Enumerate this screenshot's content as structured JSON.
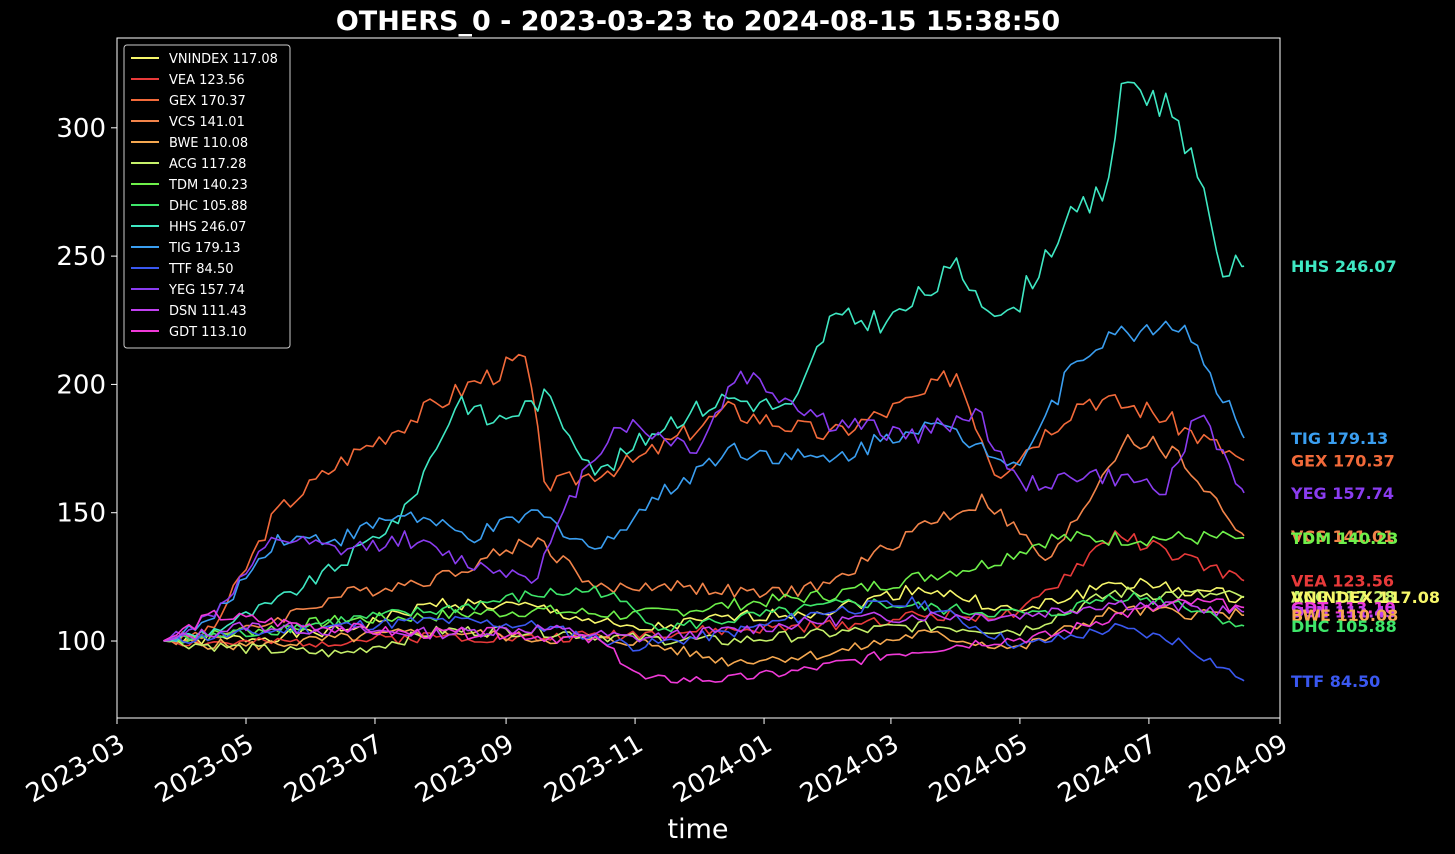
{
  "chart_data": {
    "type": "line",
    "title": "OTHERS_0 - 2023-03-23 to 2024-08-15 15:38:50",
    "xlabel": "time",
    "ylabel": "",
    "x_start": "2023-03-23",
    "x_end": "2024-08-15",
    "xlim": [
      "2023-03-01",
      "2024-09-01"
    ],
    "ylim": [
      70,
      335
    ],
    "x_ticks": [
      "2023-03",
      "2023-05",
      "2023-07",
      "2023-09",
      "2023-11",
      "2024-01",
      "2024-03",
      "2024-05",
      "2024-07",
      "2024-09"
    ],
    "y_ticks": [
      100,
      150,
      200,
      250,
      300
    ],
    "legend_position": "top-left",
    "grid": false,
    "background": "#000000",
    "series": [
      {
        "name": "VNINDEX 117.08",
        "color": "#f7f76a",
        "x": [
          "2023-03-23",
          "2023-05-01",
          "2023-06-15",
          "2023-08-01",
          "2023-09-15",
          "2023-11-01",
          "2023-12-15",
          "2024-02-01",
          "2024-03-15",
          "2024-05-01",
          "2024-06-15",
          "2024-08-15"
        ],
        "y": [
          100,
          101,
          104,
          115,
          113,
          104,
          109,
          112,
          121,
          111,
          123,
          117.08
        ]
      },
      {
        "name": "VEA 123.56",
        "color": "#e83a3a",
        "x": [
          "2023-03-23",
          "2023-05-01",
          "2023-06-15",
          "2023-08-01",
          "2023-09-15",
          "2023-11-01",
          "2023-12-15",
          "2024-02-01",
          "2024-03-15",
          "2024-05-01",
          "2024-06-15",
          "2024-08-15"
        ],
        "y": [
          100,
          99,
          100,
          102,
          101,
          103,
          104,
          106,
          110,
          110,
          142,
          123.56
        ]
      },
      {
        "name": "GEX 170.37",
        "color": "#f26a3a",
        "x": [
          "2023-03-23",
          "2023-04-15",
          "2023-05-15",
          "2023-06-15",
          "2023-07-15",
          "2023-08-15",
          "2023-09-10",
          "2023-09-20",
          "2023-11-01",
          "2023-12-15",
          "2024-02-01",
          "2024-03-15",
          "2024-04-01",
          "2024-04-20",
          "2024-06-01",
          "2024-07-01",
          "2024-08-15"
        ],
        "y": [
          100,
          104,
          150,
          170,
          185,
          200,
          210,
          160,
          170,
          190,
          180,
          195,
          205,
          165,
          195,
          190,
          170.37
        ]
      },
      {
        "name": "VCS 141.01",
        "color": "#f2844a",
        "x": [
          "2023-03-23",
          "2023-05-01",
          "2023-06-15",
          "2023-08-01",
          "2023-09-15",
          "2023-10-15",
          "2023-11-15",
          "2024-01-01",
          "2024-02-01",
          "2024-03-15",
          "2024-04-15",
          "2024-05-15",
          "2024-06-20",
          "2024-07-15",
          "2024-08-15"
        ],
        "y": [
          100,
          104,
          118,
          125,
          140,
          120,
          122,
          118,
          122,
          145,
          155,
          130,
          180,
          172,
          141.01
        ]
      },
      {
        "name": "BWE 110.08",
        "color": "#f5a850",
        "x": [
          "2023-03-23",
          "2023-05-01",
          "2023-06-15",
          "2023-08-01",
          "2023-09-15",
          "2023-11-01",
          "2023-12-15",
          "2024-02-01",
          "2024-03-15",
          "2024-05-01",
          "2024-06-15",
          "2024-08-15"
        ],
        "y": [
          100,
          98,
          101,
          104,
          101,
          100,
          92,
          95,
          103,
          97,
          112,
          110.08
        ]
      },
      {
        "name": "ACG 117.28",
        "color": "#c6f06a",
        "x": [
          "2023-03-23",
          "2023-05-01",
          "2023-06-15",
          "2023-08-01",
          "2023-09-15",
          "2023-11-01",
          "2023-12-15",
          "2024-02-01",
          "2024-03-15",
          "2024-05-01",
          "2024-06-15",
          "2024-08-15"
        ],
        "y": [
          100,
          97,
          95,
          104,
          104,
          101,
          100,
          103,
          106,
          104,
          119,
          117.28
        ]
      },
      {
        "name": "TDM 140.23",
        "color": "#6ef04a",
        "x": [
          "2023-03-23",
          "2023-05-01",
          "2023-06-15",
          "2023-08-01",
          "2023-09-15",
          "2023-11-01",
          "2023-12-15",
          "2024-02-01",
          "2024-03-15",
          "2024-04-15",
          "2024-05-15",
          "2024-06-15",
          "2024-08-15"
        ],
        "y": [
          100,
          104,
          108,
          110,
          112,
          110,
          114,
          118,
          125,
          130,
          140,
          140,
          140.23
        ]
      },
      {
        "name": "DHC 105.88",
        "color": "#3ee66a",
        "x": [
          "2023-03-23",
          "2023-05-01",
          "2023-06-15",
          "2023-08-01",
          "2023-09-15",
          "2023-10-15",
          "2023-11-15",
          "2024-01-01",
          "2024-02-15",
          "2024-04-01",
          "2024-05-15",
          "2024-06-15",
          "2024-07-15",
          "2024-08-15"
        ],
        "y": [
          100,
          103,
          108,
          112,
          118,
          120,
          105,
          110,
          115,
          112,
          110,
          118,
          115,
          105.88
        ]
      },
      {
        "name": "HHS 246.07",
        "color": "#3fe8c3",
        "x": [
          "2023-03-23",
          "2023-04-15",
          "2023-05-15",
          "2023-06-15",
          "2023-07-15",
          "2023-08-10",
          "2023-08-25",
          "2023-09-20",
          "2023-10-15",
          "2023-11-15",
          "2023-12-15",
          "2024-01-15",
          "2024-02-01",
          "2024-03-01",
          "2024-04-01",
          "2024-04-25",
          "2024-05-20",
          "2024-06-10",
          "2024-06-20",
          "2024-07-15",
          "2024-08-05",
          "2024-08-15"
        ],
        "y": [
          100,
          104,
          115,
          130,
          150,
          195,
          185,
          195,
          165,
          185,
          195,
          190,
          225,
          225,
          245,
          225,
          260,
          275,
          320,
          305,
          245,
          246.07
        ]
      },
      {
        "name": "TIG 179.13",
        "color": "#3a9ef0",
        "x": [
          "2023-03-23",
          "2023-04-15",
          "2023-05-15",
          "2023-06-15",
          "2023-07-15",
          "2023-08-15",
          "2023-09-15",
          "2023-10-15",
          "2023-11-01",
          "2023-12-15",
          "2024-02-01",
          "2024-03-15",
          "2024-04-01",
          "2024-05-01",
          "2024-06-01",
          "2024-07-15",
          "2024-08-01",
          "2024-08-15"
        ],
        "y": [
          100,
          108,
          140,
          140,
          150,
          140,
          150,
          135,
          150,
          175,
          170,
          185,
          180,
          170,
          215,
          225,
          200,
          179.13
        ]
      },
      {
        "name": "TTF 84.50",
        "color": "#3a58f0",
        "x": [
          "2023-03-23",
          "2023-05-01",
          "2023-06-15",
          "2023-08-01",
          "2023-09-15",
          "2023-11-01",
          "2023-12-15",
          "2024-02-01",
          "2024-03-15",
          "2024-05-01",
          "2024-06-15",
          "2024-07-15",
          "2024-08-15"
        ],
        "y": [
          100,
          103,
          106,
          108,
          106,
          98,
          103,
          112,
          115,
          98,
          105,
          100,
          84.5
        ]
      },
      {
        "name": "YEG 157.74",
        "color": "#8a3cf0",
        "x": [
          "2023-03-23",
          "2023-04-15",
          "2023-05-15",
          "2023-06-15",
          "2023-07-15",
          "2023-08-15",
          "2023-09-15",
          "2023-10-10",
          "2023-10-25",
          "2023-12-01",
          "2023-12-20",
          "2024-02-01",
          "2024-03-15",
          "2024-04-10",
          "2024-05-01",
          "2024-06-01",
          "2024-07-10",
          "2024-07-25",
          "2024-08-15"
        ],
        "y": [
          100,
          110,
          140,
          135,
          140,
          130,
          125,
          170,
          185,
          175,
          205,
          185,
          180,
          190,
          160,
          165,
          160,
          190,
          157.74
        ]
      },
      {
        "name": "DSN 111.43",
        "color": "#c040f0",
        "x": [
          "2023-03-23",
          "2023-05-01",
          "2023-06-15",
          "2023-08-01",
          "2023-09-15",
          "2023-11-01",
          "2023-12-15",
          "2024-02-01",
          "2024-03-15",
          "2024-05-01",
          "2024-06-15",
          "2024-08-15"
        ],
        "y": [
          100,
          106,
          104,
          103,
          105,
          101,
          104,
          108,
          110,
          110,
          115,
          111.43
        ]
      },
      {
        "name": "GDT 113.10",
        "color": "#f03ad8",
        "x": [
          "2023-03-23",
          "2023-04-15",
          "2023-06-01",
          "2023-07-15",
          "2023-09-01",
          "2023-10-15",
          "2023-11-05",
          "2023-12-15",
          "2024-01-15",
          "2024-03-01",
          "2024-04-15",
          "2024-05-15",
          "2024-06-15",
          "2024-07-20",
          "2024-08-15"
        ],
        "y": [
          100,
          110,
          106,
          103,
          103,
          100,
          85,
          85,
          88,
          95,
          100,
          102,
          110,
          115,
          113.1
        ]
      }
    ],
    "end_labels": [
      {
        "text": "HHS 246.07",
        "color": "#3fe8c3",
        "value": 246.07
      },
      {
        "text": "TIG 179.13",
        "color": "#3a9ef0",
        "value": 179.13
      },
      {
        "text": "GEX 170.37",
        "color": "#f26a3a",
        "value": 170.37
      },
      {
        "text": "YEG 157.74",
        "color": "#8a3cf0",
        "value": 157.74
      },
      {
        "text": "VCS 141.01",
        "color": "#f2844a",
        "value": 141.01
      },
      {
        "text": "TDM 140.23",
        "color": "#6ef04a",
        "value": 140.23
      },
      {
        "text": "VEA 123.56",
        "color": "#e83a3a",
        "value": 123.56
      },
      {
        "text": "ACG 117.28",
        "color": "#c6f06a",
        "value": 117.28
      },
      {
        "text": "VNINDEX 117.08",
        "color": "#f7f76a",
        "value": 117.08
      },
      {
        "text": "GDT 113.10",
        "color": "#f03ad8",
        "value": 113.1
      },
      {
        "text": "DSN 111.43",
        "color": "#c040f0",
        "value": 111.43
      },
      {
        "text": "BWE 110.08",
        "color": "#f5a850",
        "value": 110.08
      },
      {
        "text": "DHC 105.88",
        "color": "#3ee66a",
        "value": 105.88
      },
      {
        "text": "TTF 84.50",
        "color": "#3a58f0",
        "value": 84.5
      }
    ]
  }
}
